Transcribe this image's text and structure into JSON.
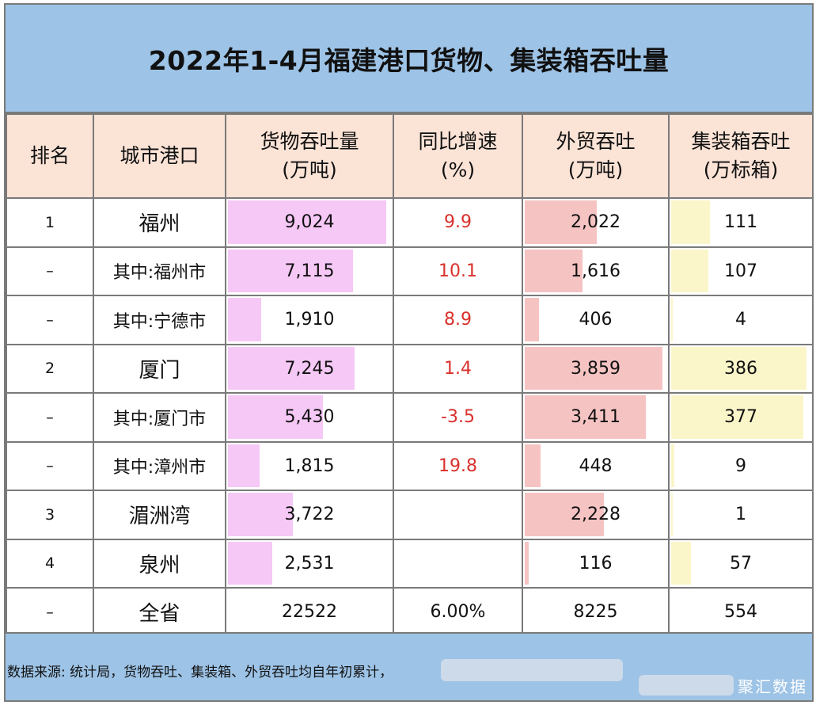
{
  "title": "2022年1-4月福建港口货物、集装箱吞吐量",
  "headers": {
    "rank": "排名",
    "city": "城市港口",
    "cargo_l1": "货物吞吐量",
    "cargo_l2": "(万吨)",
    "growth_l1": "同比增速",
    "growth_l2": "(%)",
    "trade_l1": "外贸吞吐",
    "trade_l2": "(万吨)",
    "box_l1": "集装箱吞吐",
    "box_l2": "(万标箱)"
  },
  "rows": [
    {
      "rank": "1",
      "city": "福州",
      "cargo": "9,024",
      "growth": "9.9",
      "trade": "2,022",
      "box": "111"
    },
    {
      "rank": "–",
      "city": "其中:福州市",
      "cargo": "7,115",
      "growth": "10.1",
      "trade": "1,616",
      "box": "107"
    },
    {
      "rank": "–",
      "city": "其中:宁德市",
      "cargo": "1,910",
      "growth": "8.9",
      "trade": "406",
      "box": "4"
    },
    {
      "rank": "2",
      "city": "厦门",
      "cargo": "7,245",
      "growth": "1.4",
      "trade": "3,859",
      "box": "386"
    },
    {
      "rank": "–",
      "city": "其中:厦门市",
      "cargo": "5,430",
      "growth": "-3.5",
      "trade": "3,411",
      "box": "377"
    },
    {
      "rank": "–",
      "city": "其中:漳州市",
      "cargo": "1,815",
      "growth": "19.8",
      "trade": "448",
      "box": "9"
    },
    {
      "rank": "3",
      "city": "湄洲湾",
      "cargo": "3,722",
      "growth": "",
      "trade": "2,228",
      "box": "1"
    },
    {
      "rank": "4",
      "city": "泉州",
      "cargo": "2,531",
      "growth": "",
      "trade": "116",
      "box": "57"
    },
    {
      "rank": "–",
      "city": "全省",
      "cargo": "22522",
      "growth": "6.00%",
      "trade": "8225",
      "box": "554"
    }
  ],
  "footer": {
    "note": "数据来源: 统计局，货物吞吐、集装箱、外贸吞吐均自年初累计，",
    "watermark": "聚汇数据"
  },
  "colors": {
    "title_band": "#9dc3e6",
    "header_bg": "#fbe3d6",
    "cargo_bar": "#f6c8f6",
    "trade_bar": "#f6c3c3",
    "box_bar": "#fbf6c9",
    "growth_text": "#d9302c"
  },
  "chart_data": {
    "type": "table",
    "title": "2022年1-4月福建港口货物、集装箱吞吐量",
    "columns": [
      "排名",
      "城市港口",
      "货物吞吐量(万吨)",
      "同比增速(%)",
      "外贸吞吐(万吨)",
      "集装箱吞吐(万标箱)"
    ],
    "categories": [
      "福州",
      "其中:福州市",
      "其中:宁德市",
      "厦门",
      "其中:厦门市",
      "其中:漳州市",
      "湄洲湾",
      "泉州",
      "全省"
    ],
    "series": [
      {
        "name": "货物吞吐量(万吨)",
        "values": [
          9024,
          7115,
          1910,
          7245,
          5430,
          1815,
          3722,
          2531,
          22522
        ]
      },
      {
        "name": "同比增速(%)",
        "values": [
          9.9,
          10.1,
          8.9,
          1.4,
          -3.5,
          19.8,
          null,
          null,
          6.0
        ]
      },
      {
        "name": "外贸吞吐(万吨)",
        "values": [
          2022,
          1616,
          406,
          3859,
          3411,
          448,
          2228,
          116,
          8225
        ]
      },
      {
        "name": "集装箱吞吐(万标箱)",
        "values": [
          111,
          107,
          4,
          386,
          377,
          9,
          1,
          57,
          554
        ]
      }
    ],
    "data_bars": {
      "cargo_max": 9024,
      "trade_max": 3859,
      "box_max": 386,
      "excluded_rows": [
        "全省"
      ]
    }
  }
}
